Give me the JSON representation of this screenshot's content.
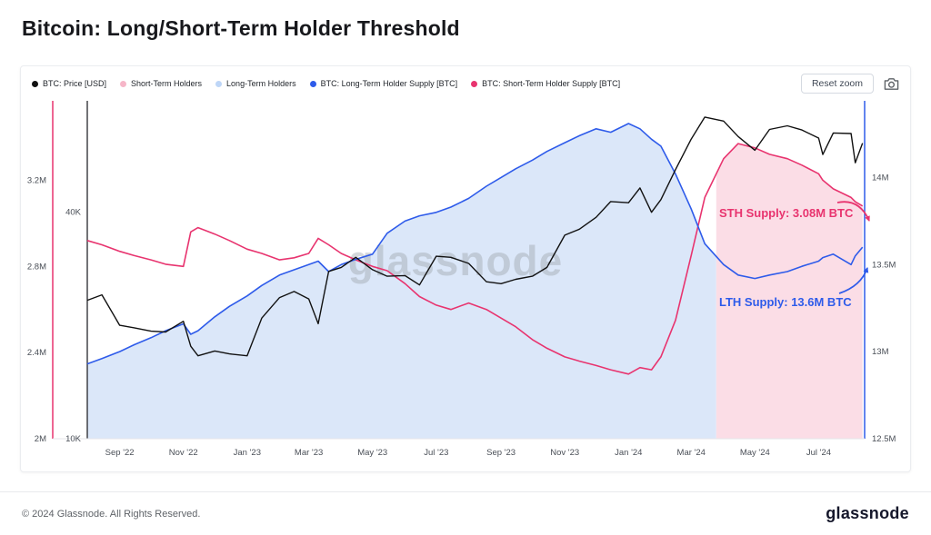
{
  "header": {
    "title": "Bitcoin: Long/Short-Term Holder Threshold"
  },
  "buttons": {
    "reset_zoom": "Reset zoom",
    "camera_icon": "camera-icon"
  },
  "legend": [
    {
      "label": "BTC: Price [USD]",
      "color": "#111111"
    },
    {
      "label": "Short-Term Holders",
      "color": "#f6b6c8"
    },
    {
      "label": "Long-Term Holders",
      "color": "#bed6f7"
    },
    {
      "label": "BTC: Long-Term Holder Supply [BTC]",
      "color": "#2e5bea"
    },
    {
      "label": "BTC: Short-Term Holder Supply [BTC]",
      "color": "#e8346f"
    }
  ],
  "watermark": "glassnode",
  "footer": {
    "copyright": "© 2024 Glassnode. All Rights Reserved.",
    "brand": "glassnode"
  },
  "chart_data": {
    "type": "line",
    "title": "Bitcoin: Long/Short-Term Holder Threshold",
    "x_ticks": [
      "Sep '22",
      "Nov '22",
      "Jan '23",
      "Mar '23",
      "May '23",
      "Jul '23",
      "Sep '23",
      "Nov '23",
      "Jan '24",
      "Mar '24",
      "May '24",
      "Jul '24"
    ],
    "x_tick_dates": [
      "2022-09-01",
      "2022-11-01",
      "2023-01-01",
      "2023-03-01",
      "2023-05-01",
      "2023-07-01",
      "2023-09-01",
      "2023-11-01",
      "2024-01-01",
      "2024-03-01",
      "2024-05-01",
      "2024-07-01"
    ],
    "x_domain": [
      "2022-08-01",
      "2024-08-14"
    ],
    "axes": {
      "price": {
        "ticks": [
          "40K",
          "10K"
        ],
        "tick_values": [
          40000,
          10000
        ],
        "scale": "log",
        "range": [
          10000,
          78000
        ],
        "color": "#15161a"
      },
      "sth": {
        "ticks": [
          "2M",
          "2.4M",
          "2.8M",
          "3.2M"
        ],
        "tick_values": [
          2.0,
          2.4,
          2.8,
          3.2
        ],
        "scale": "linear",
        "range": [
          2.0,
          3.56
        ],
        "color": "#e8346f"
      },
      "lth": {
        "ticks": [
          "12.5M",
          "13M",
          "13.5M",
          "14M"
        ],
        "tick_values": [
          12.5,
          13.0,
          13.5,
          14.0
        ],
        "scale": "linear",
        "range": [
          12.5,
          14.43
        ],
        "color": "#2e5bea"
      }
    },
    "regime_split_date": "2024-03-25",
    "dates": [
      "2022-08-01",
      "2022-08-15",
      "2022-09-01",
      "2022-09-15",
      "2022-10-01",
      "2022-10-15",
      "2022-11-01",
      "2022-11-08",
      "2022-11-15",
      "2022-12-01",
      "2022-12-15",
      "2023-01-01",
      "2023-01-15",
      "2023-02-01",
      "2023-02-15",
      "2023-03-01",
      "2023-03-10",
      "2023-03-20",
      "2023-04-01",
      "2023-04-15",
      "2023-05-01",
      "2023-05-15",
      "2023-06-01",
      "2023-06-15",
      "2023-07-01",
      "2023-07-15",
      "2023-08-01",
      "2023-08-18",
      "2023-09-01",
      "2023-09-15",
      "2023-10-01",
      "2023-10-15",
      "2023-11-01",
      "2023-11-15",
      "2023-12-01",
      "2023-12-15",
      "2024-01-01",
      "2024-01-12",
      "2024-01-23",
      "2024-02-01",
      "2024-02-15",
      "2024-03-01",
      "2024-03-14",
      "2024-04-01",
      "2024-04-15",
      "2024-05-01",
      "2024-05-15",
      "2024-06-01",
      "2024-06-15",
      "2024-07-01",
      "2024-07-05",
      "2024-07-15",
      "2024-08-01",
      "2024-08-05",
      "2024-08-12"
    ],
    "series": [
      {
        "name": "BTC: Price [USD]",
        "axis": "price",
        "color": "#111111",
        "unit": "USD",
        "values": [
          23300,
          24100,
          20000,
          19700,
          19300,
          19200,
          20500,
          17600,
          16600,
          17100,
          16800,
          16600,
          20900,
          23700,
          24600,
          23500,
          20200,
          27800,
          28500,
          30300,
          28100,
          27000,
          27100,
          25600,
          30500,
          30300,
          29200,
          26100,
          25800,
          26500,
          27000,
          28500,
          34700,
          36000,
          38700,
          42600,
          42300,
          46300,
          39900,
          43100,
          51800,
          62400,
          71400,
          69700,
          63400,
          58300,
          66200,
          67700,
          66000,
          62800,
          56800,
          64800,
          64600,
          54000,
          60900
        ]
      },
      {
        "name": "BTC: Short-Term Holder Supply [BTC]",
        "axis": "sth",
        "color": "#e8346f",
        "unit": "M BTC",
        "values": [
          2.92,
          2.9,
          2.87,
          2.85,
          2.83,
          2.81,
          2.8,
          2.96,
          2.98,
          2.95,
          2.92,
          2.88,
          2.86,
          2.83,
          2.84,
          2.86,
          2.93,
          2.9,
          2.86,
          2.83,
          2.8,
          2.78,
          2.72,
          2.66,
          2.62,
          2.6,
          2.63,
          2.6,
          2.56,
          2.52,
          2.46,
          2.42,
          2.38,
          2.36,
          2.34,
          2.32,
          2.3,
          2.33,
          2.32,
          2.38,
          2.55,
          2.85,
          3.12,
          3.3,
          3.37,
          3.35,
          3.32,
          3.3,
          3.27,
          3.23,
          3.2,
          3.16,
          3.12,
          3.1,
          3.08
        ]
      },
      {
        "name": "BTC: Long-Term Holder Supply [BTC]",
        "axis": "lth",
        "color": "#2e5bea",
        "unit": "M BTC",
        "values": [
          12.93,
          12.96,
          13.0,
          13.04,
          13.08,
          13.12,
          13.16,
          13.1,
          13.12,
          13.2,
          13.26,
          13.32,
          13.38,
          13.44,
          13.47,
          13.5,
          13.52,
          13.46,
          13.5,
          13.53,
          13.56,
          13.68,
          13.75,
          13.78,
          13.8,
          13.83,
          13.88,
          13.95,
          14.0,
          14.05,
          14.1,
          14.15,
          14.2,
          14.24,
          14.28,
          14.26,
          14.31,
          14.28,
          14.22,
          14.18,
          14.02,
          13.82,
          13.62,
          13.5,
          13.44,
          13.42,
          13.44,
          13.46,
          13.49,
          13.52,
          13.54,
          13.56,
          13.5,
          13.55,
          13.6
        ]
      }
    ],
    "areas": [
      {
        "name": "Long-Term Holders",
        "source": "BTC: Long-Term Holder Supply [BTC]",
        "until": "2024-03-25",
        "fill": "#dbe7f9"
      },
      {
        "name": "Short-Term Holders",
        "source": "BTC: Short-Term Holder Supply [BTC]",
        "from": "2024-03-25",
        "fill": "#fbdde6"
      }
    ],
    "annotations": [
      {
        "text": "STH Supply: 3.08M BTC",
        "color": "#e8346f"
      },
      {
        "text": "LTH Supply: 13.6M BTC",
        "color": "#2e5bea"
      }
    ],
    "legend_position": "top",
    "grid": false
  }
}
